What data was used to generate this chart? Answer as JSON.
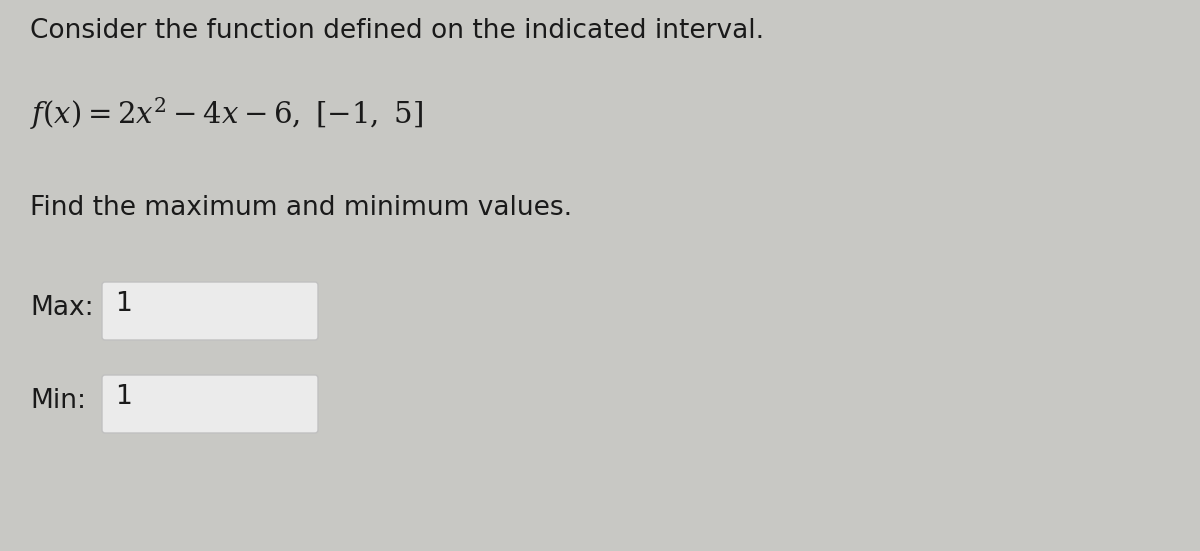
{
  "background_color": "#c8c8c4",
  "line1": "Consider the function defined on the indicated interval.",
  "line3": "Find the maximum and minimum values.",
  "max_label": "Max:",
  "max_value": "1",
  "min_label": "Min:",
  "min_value": "1",
  "text_color": "#1a1a1a",
  "box_fill_color": "#ebebeb",
  "box_edge_color": "#c0c0c0",
  "font_size_line1": 19,
  "font_size_line2": 21,
  "font_size_line3": 19,
  "font_size_labels": 19,
  "font_size_values": 19,
  "fig_width": 12.0,
  "fig_height": 5.51,
  "dpi": 100
}
